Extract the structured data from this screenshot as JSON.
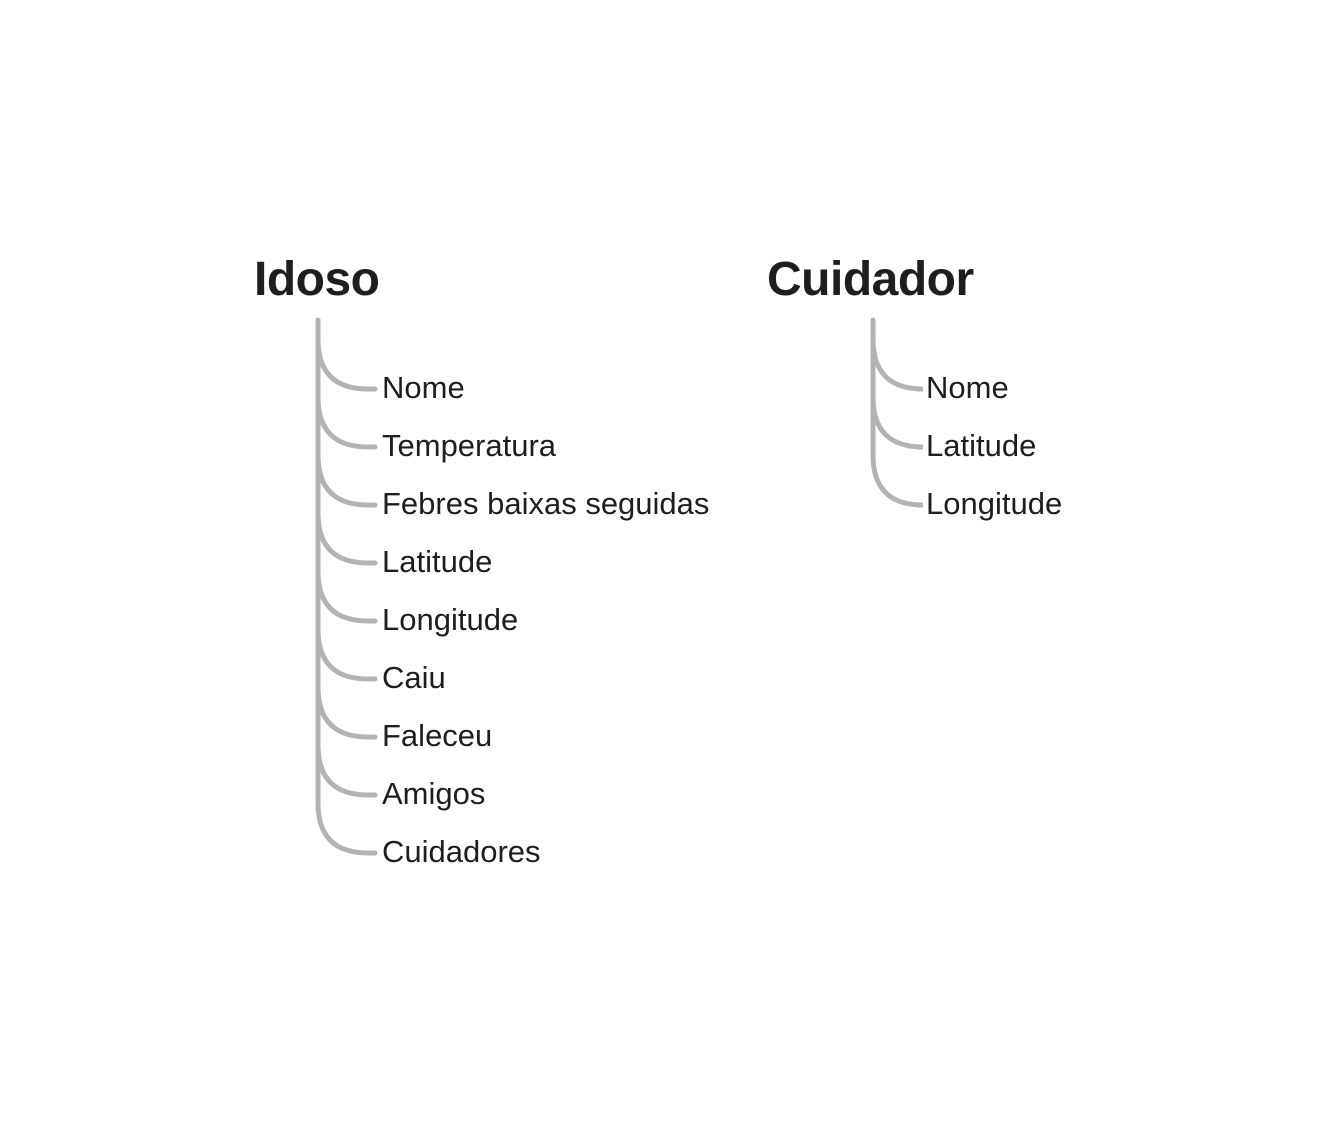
{
  "trees": [
    {
      "title": "Idoso",
      "items": [
        "Nome",
        "Temperatura",
        "Febres baixas seguidas",
        "Latitude",
        "Longitude",
        "Caiu",
        "Faleceu",
        "Amigos",
        "Cuidadores"
      ]
    },
    {
      "title": "Cuidador",
      "items": [
        "Nome",
        "Latitude",
        "Longitude"
      ]
    }
  ],
  "colors": {
    "text": "#1e1e1e",
    "connector": "#b3b3b3"
  }
}
